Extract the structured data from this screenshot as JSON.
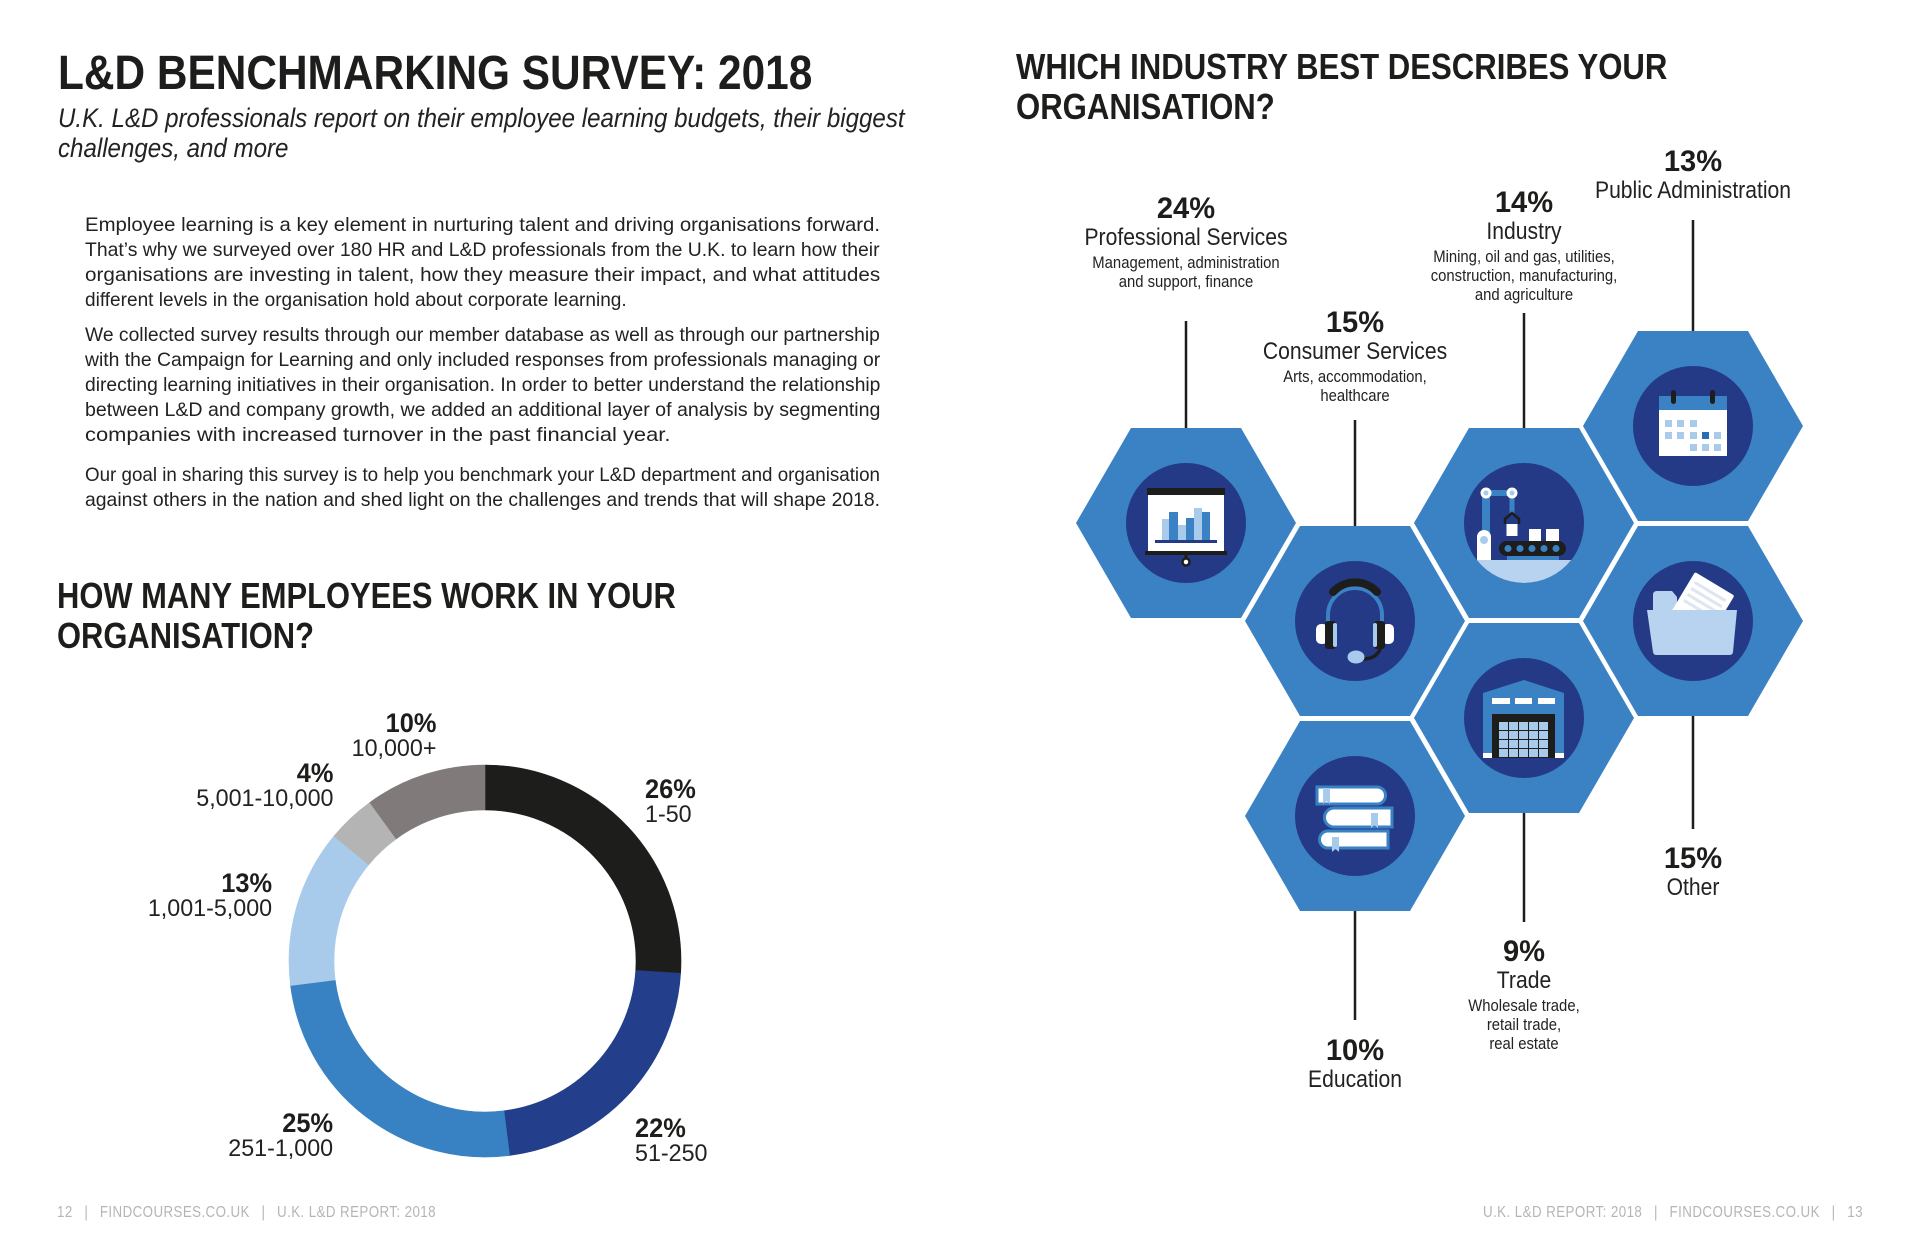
{
  "header": {
    "title": "L&D BENCHMARKING SURVEY: 2018",
    "subtitle_lines": [
      "U.K. L&D professionals report on their employee learning budgets, their biggest",
      "challenges, and more"
    ]
  },
  "intro": {
    "paragraphs": [
      [
        "Employee learning is a key element in nurturing talent and driving organisations forward.",
        "That’s why we surveyed over 180 HR and L&D professionals from the U.K. to learn how their",
        "organisations are investing in talent, how they measure their impact, and what attitudes",
        "different levels in the organisation hold about corporate learning."
      ],
      [
        "We collected survey results through our member database as well as through our partnership",
        "with the Campaign for Learning and only included responses from professionals managing or",
        "directing learning initiatives in their organisation. In order to better understand the relationship",
        "between L&D and company growth, we added an additional layer of analysis by segmenting",
        "companies with increased turnover in the past financial year."
      ],
      [
        "Our goal in sharing this survey is to help you benchmark your L&D department and organisation",
        "against others in the nation and shed light on the challenges and trends that will shape 2018."
      ]
    ]
  },
  "footer": {
    "separator": "|",
    "left": {
      "page_number": "12",
      "site": "FINDCOURSES.CO.UK",
      "report": "U.K. L&D REPORT: 2018"
    },
    "right": {
      "report": "U.K. L&D REPORT: 2018",
      "site": "FINDCOURSES.CO.UK",
      "page_number": "13"
    }
  },
  "colors": {
    "text": "#1d1d1b",
    "hex_fill": "#3a82c4",
    "icon_circle": "#243a87",
    "connector_line": "#1d1d1b",
    "footer_text": "#b5b5b5",
    "icon_light_blue": "#a8cbec",
    "icon_pale_blue": "#b7d3ef"
  },
  "chart_data": [
    {
      "type": "pie",
      "title_lines": [
        "HOW MANY EMPLOYEES WORK IN YOUR",
        "ORGANISATION?"
      ],
      "categories": [
        "1-50",
        "51-250",
        "251-1,000",
        "1,001-5,000",
        "5,001-10,000",
        "10,000+"
      ],
      "values": [
        26,
        22,
        25,
        13,
        4,
        10
      ],
      "value_labels": [
        "26%",
        "22%",
        "25%",
        "13%",
        "4%",
        "10%"
      ],
      "colors": [
        "#1d1d1b",
        "#233e8b",
        "#3882c3",
        "#a8cbec",
        "#b4b4b4",
        "#807b7a"
      ]
    },
    {
      "type": "table",
      "title_lines": [
        "WHICH INDUSTRY BEST DESCRIBES YOUR",
        "ORGANISATION?"
      ],
      "categories": [
        "Professional Services",
        "Consumer Services",
        "Industry",
        "Public Administration",
        "Other",
        "Trade",
        "Education"
      ],
      "values": [
        24,
        15,
        14,
        13,
        15,
        9,
        10
      ],
      "value_labels": [
        "24%",
        "15%",
        "14%",
        "13%",
        "15%",
        "9%",
        "10%"
      ],
      "descriptions": [
        [
          "Management, administration",
          "and support, finance"
        ],
        [
          "Arts, accommodation,",
          "healthcare"
        ],
        [
          "Mining, oil and gas, utilities,",
          "construction, manufacturing,",
          "and agriculture"
        ],
        [],
        [],
        [
          "Wholesale trade,",
          "retail trade,",
          "real estate"
        ],
        []
      ],
      "icons": [
        "presentation-chart-icon",
        "headset-icon",
        "robot-arm-icon",
        "calendar-icon",
        "folder-icon",
        "warehouse-icon",
        "books-icon"
      ]
    }
  ]
}
